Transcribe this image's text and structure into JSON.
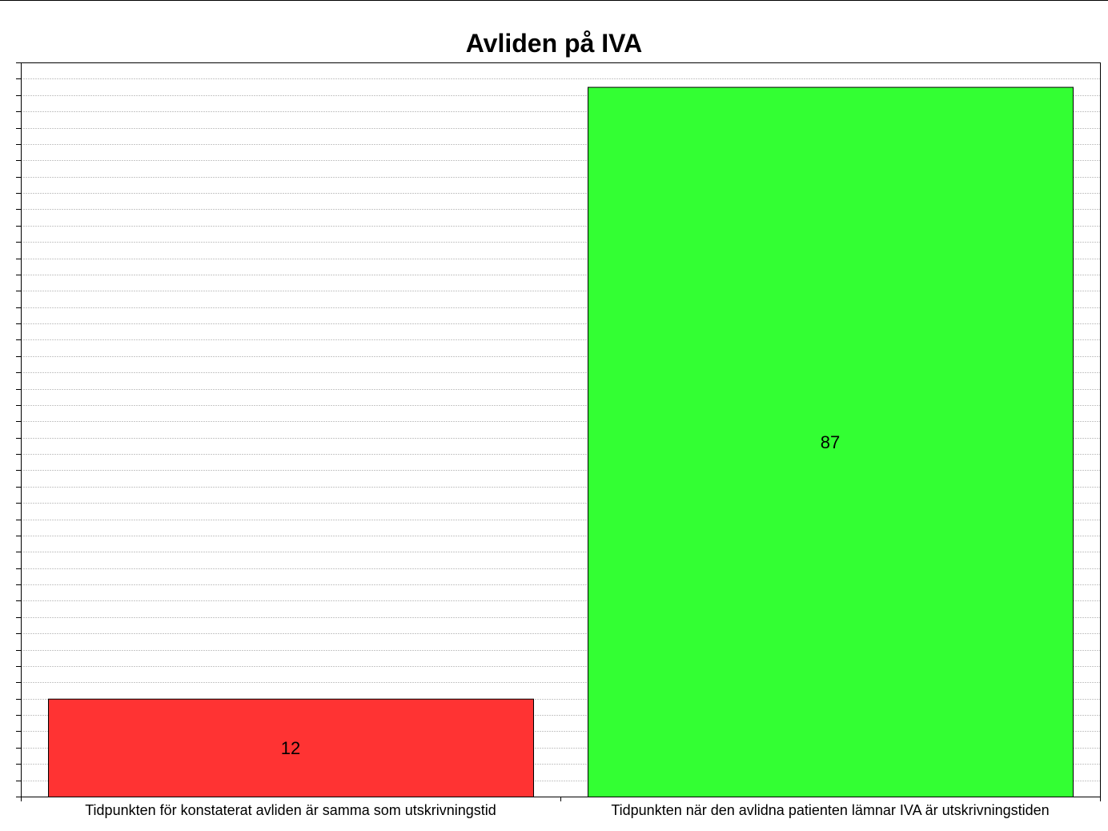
{
  "chart_data": {
    "type": "bar",
    "title": "Avliden på IVA",
    "categories": [
      "Tidpunkten för konstaterat avliden är samma som utskrivningstid",
      "Tidpunkten när den avlidna patienten lämnar IVA är utskrivningstiden"
    ],
    "values": [
      12,
      87
    ],
    "data_labels": [
      "12",
      "87"
    ],
    "ylim": [
      0,
      90
    ],
    "grid": true,
    "colors": [
      "#ff3333",
      "#33ff33"
    ]
  }
}
